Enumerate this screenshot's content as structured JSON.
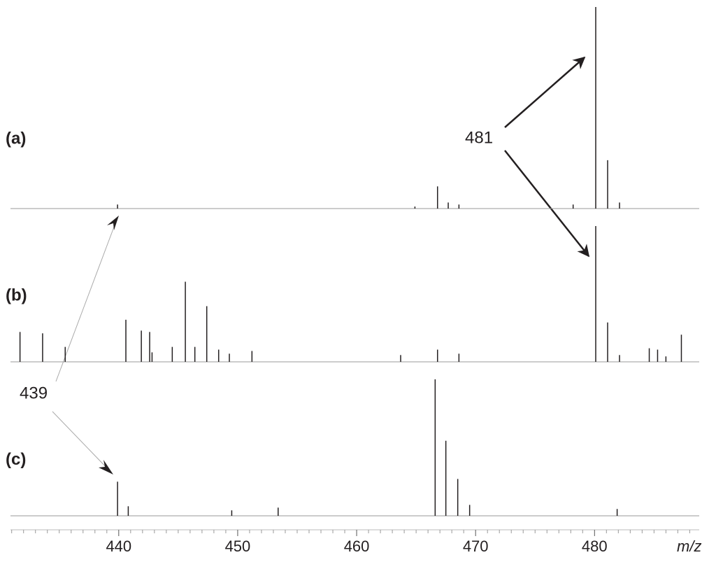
{
  "chart_data": {
    "type": "stem",
    "xlabel": "m/z",
    "xlim": [
      430.9,
      488.8
    ],
    "xticks": [
      440,
      450,
      460,
      470,
      480
    ],
    "minor_xticks": [
      431,
      432,
      433,
      434,
      435,
      436,
      437,
      438,
      439,
      441,
      442,
      443,
      444,
      445,
      446,
      447,
      448,
      449,
      451,
      452,
      453,
      454,
      455,
      456,
      457,
      458,
      459,
      461,
      462,
      463,
      464,
      465,
      466,
      467,
      468,
      469,
      471,
      472,
      473,
      474,
      475,
      476,
      477,
      478,
      479,
      481,
      482,
      483,
      484,
      485,
      486,
      487,
      488
    ],
    "annotations": [
      "481",
      "439"
    ],
    "color": "#231f20",
    "panels": [
      {
        "label": "(a)",
        "x": [
          439.9,
          464.9,
          466.8,
          467.7,
          468.6,
          478.2,
          480.1,
          481.1,
          482.1
        ],
        "values": [
          2,
          1,
          11,
          3,
          2,
          2,
          100,
          24,
          3
        ]
      },
      {
        "label": "(b)",
        "x": [
          431.7,
          433.6,
          435.5,
          440.6,
          441.9,
          442.6,
          442.8,
          444.5,
          445.6,
          446.4,
          447.4,
          448.4,
          449.3,
          451.2,
          463.7,
          466.8,
          468.6,
          480.1,
          481.1,
          482.1,
          484.6,
          485.3,
          486.0,
          487.3
        ],
        "values": [
          22,
          21,
          11,
          31,
          23,
          22,
          7,
          11,
          59,
          11,
          41,
          9,
          6,
          8,
          5,
          9,
          6,
          100,
          29,
          5,
          10,
          9,
          4,
          20
        ]
      },
      {
        "label": "(c)",
        "x": [
          439.9,
          440.8,
          449.5,
          453.4,
          466.6,
          467.5,
          468.5,
          469.5,
          481.9
        ],
        "values": [
          25,
          7,
          4,
          6,
          100,
          55,
          27,
          8,
          5
        ]
      }
    ]
  }
}
